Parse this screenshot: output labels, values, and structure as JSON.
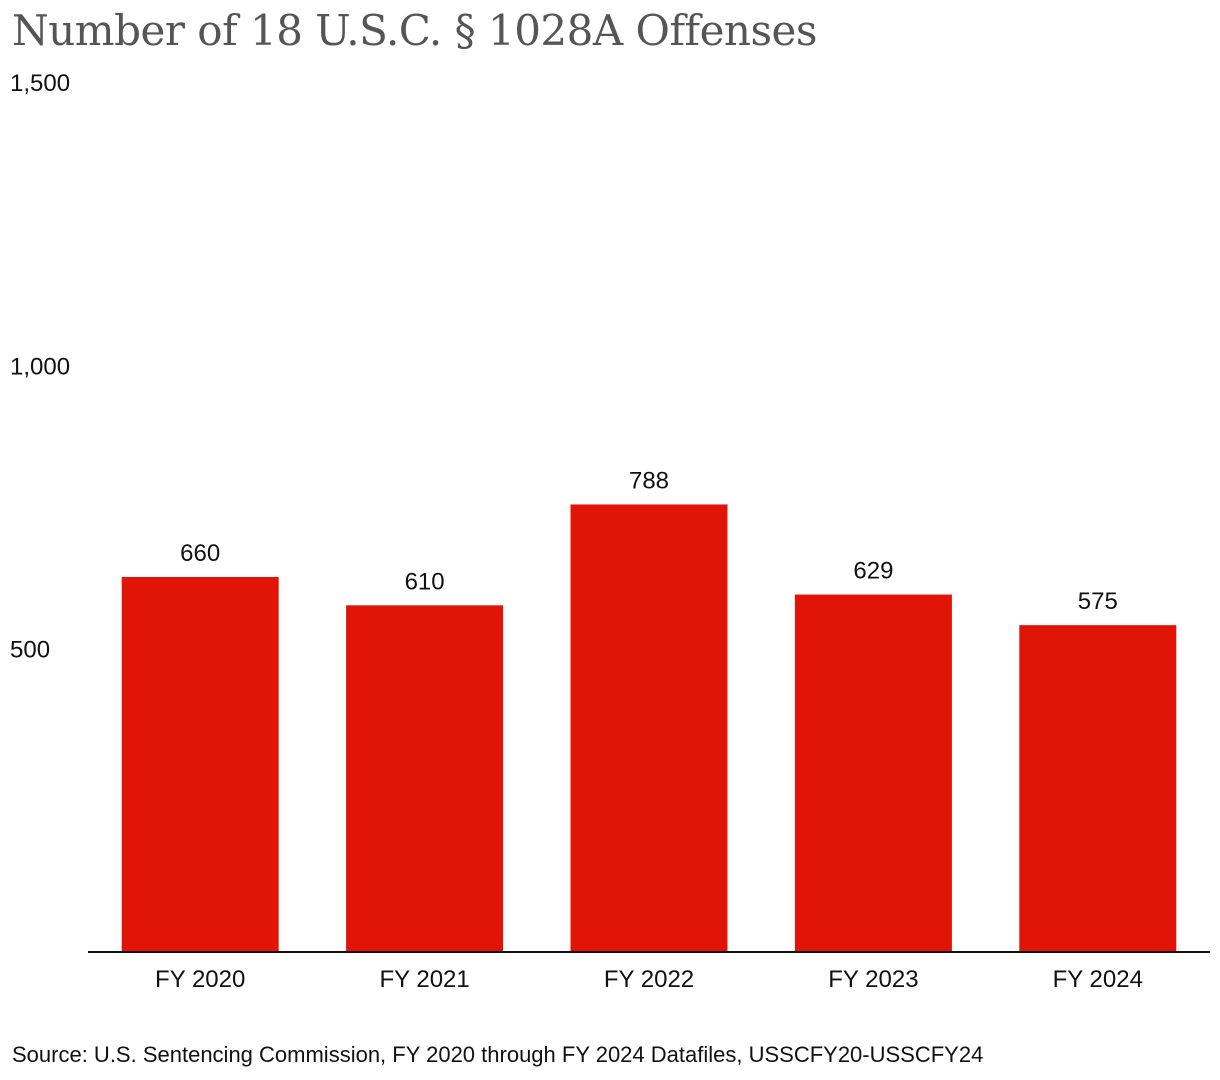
{
  "chart_data": {
    "type": "bar",
    "title": "Number of 18 U.S.C. § 1028A Offenses",
    "categories": [
      "FY 2020",
      "FY 2021",
      "FY 2022",
      "FY 2023",
      "FY 2024"
    ],
    "values": [
      660,
      610,
      788,
      629,
      575
    ],
    "data_labels": [
      "660",
      "610",
      "788",
      "629",
      "575"
    ],
    "ylim": [
      0,
      1500
    ],
    "yticks": [
      500,
      1000,
      1500
    ],
    "ytick_labels": [
      "500",
      "1,000",
      "1,500"
    ],
    "xlabel": "",
    "ylabel": "",
    "grid": false,
    "legend": "none",
    "bar_color": "#e01507",
    "source": "Source: U.S. Sentencing Commission, FY 2020 through FY 2024 Datafiles, USSCFY20-USSCFY24"
  }
}
